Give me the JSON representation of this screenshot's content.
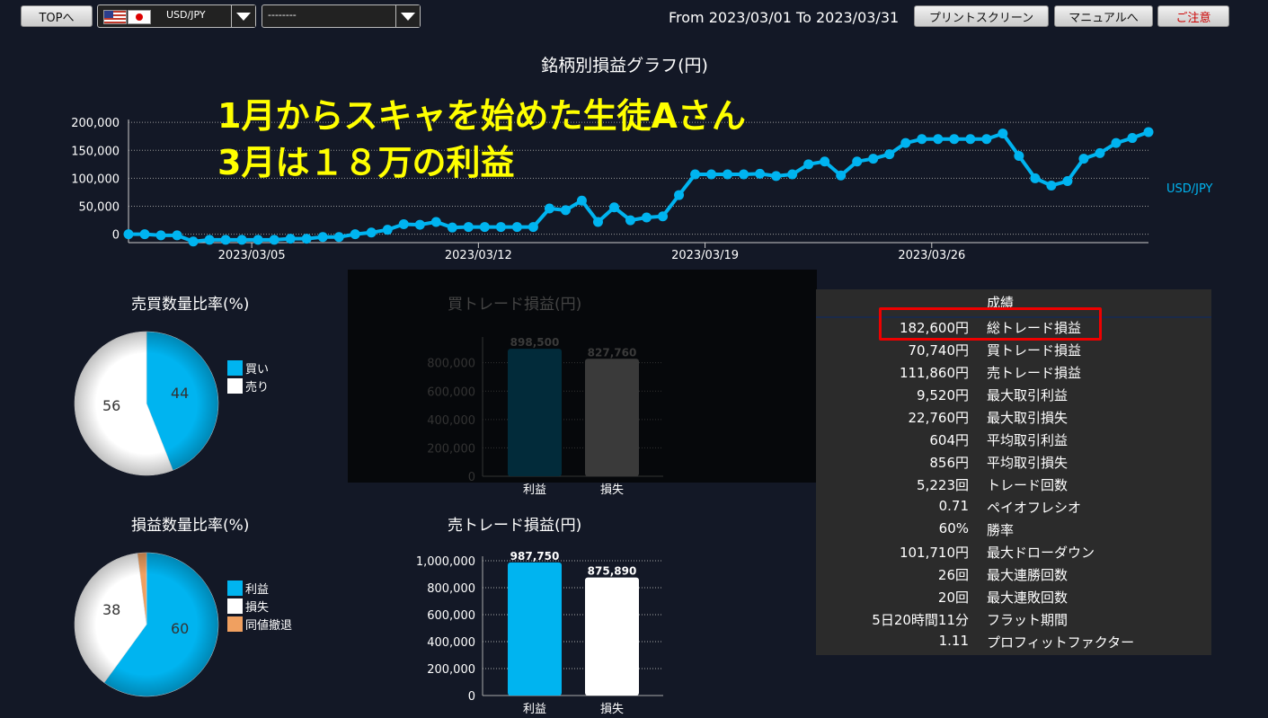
{
  "toolbar": {
    "top_button": "TOPへ",
    "pair_select": "USD/JPY",
    "second_select": "--------",
    "date_range": "From 2023/03/01 To 2023/03/31",
    "print_button": "プリントスクリーン",
    "manual_button": "マニュアルへ",
    "logout_button": "ご注意"
  },
  "main_chart": {
    "title": "銘柄別損益グラフ(円)",
    "legend": "USD/JPY",
    "y_ticks": [
      "200,000",
      "150,000",
      "100,000",
      "50,000",
      "0"
    ],
    "x_ticks": [
      "2023/03/05",
      "2023/03/12",
      "2023/03/19",
      "2023/03/26"
    ],
    "overlay_line1": "1月からスキャを始めた生徒Aさん",
    "overlay_line2": "3月は１８万の利益"
  },
  "chart_data": [
    {
      "type": "line",
      "title": "銘柄別損益グラフ(円)",
      "series": [
        {
          "name": "USD/JPY",
          "values": [
            0,
            0,
            -2000,
            -2000,
            -13000,
            -10000,
            -10000,
            -10000,
            -10000,
            -10000,
            -8000,
            -8000,
            -5000,
            -5000,
            0,
            3000,
            8000,
            18000,
            17000,
            22000,
            12000,
            13000,
            13000,
            13000,
            13000,
            13000,
            46000,
            43000,
            60000,
            22000,
            48000,
            25000,
            30000,
            32000,
            70000,
            107000,
            107000,
            107000,
            107000,
            108000,
            104000,
            107000,
            125000,
            130000,
            105000,
            130000,
            135000,
            143000,
            163000,
            170000,
            170000,
            170000,
            170000,
            170000,
            180000,
            140000,
            100000,
            87000,
            95000,
            135000,
            145000,
            163000,
            172000,
            182600
          ]
        }
      ],
      "ylim": [
        -15000,
        205000
      ]
    },
    {
      "type": "pie",
      "title": "売買数量比率(%)",
      "labels": [
        "買い",
        "売り"
      ],
      "values": [
        44,
        56
      ],
      "colors": [
        "#00b4f0",
        "#ffffff"
      ]
    },
    {
      "type": "pie",
      "title": "損益数量比率(%)",
      "labels": [
        "利益",
        "損失",
        "同値撤退"
      ],
      "values": [
        60,
        38,
        2
      ],
      "colors": [
        "#00b4f0",
        "#ffffff",
        "#f0a060"
      ]
    },
    {
      "type": "bar",
      "title": "買トレード損益(円)",
      "categories": [
        "利益",
        "損失"
      ],
      "values": [
        898500,
        827760
      ],
      "value_labels": [
        "898,500",
        "827,760"
      ],
      "y_ticks": [
        "800,000",
        "600,000",
        "400,000",
        "200,000",
        "0"
      ],
      "ylim": [
        0,
        950000
      ]
    },
    {
      "type": "bar",
      "title": "売トレード損益(円)",
      "categories": [
        "利益",
        "損失"
      ],
      "values": [
        987750,
        875890
      ],
      "value_labels": [
        "987,750",
        "875,890"
      ],
      "y_ticks": [
        "1,000,000",
        "800,000",
        "600,000",
        "400,000",
        "200,000",
        "0"
      ],
      "ylim": [
        0,
        1000000
      ]
    }
  ],
  "pie1_labels": {
    "a": "44",
    "b": "56"
  },
  "pie2_labels": {
    "a": "60",
    "b": "38"
  },
  "results": {
    "header": "成績",
    "rows": [
      {
        "value": "182,600円",
        "label": "総トレード損益"
      },
      {
        "value": "70,740円",
        "label": "買トレード損益"
      },
      {
        "value": "111,860円",
        "label": "売トレード損益"
      },
      {
        "value": "9,520円",
        "label": "最大取引利益"
      },
      {
        "value": "22,760円",
        "label": "最大取引損失"
      },
      {
        "value": "604円",
        "label": "平均取引利益"
      },
      {
        "value": "856円",
        "label": "平均取引損失"
      },
      {
        "value": "5,223回",
        "label": "トレード回数"
      },
      {
        "value": "0.71",
        "label": "ペイオフレシオ"
      },
      {
        "value": "60%",
        "label": "勝率"
      },
      {
        "value": "101,710円",
        "label": "最大ドローダウン"
      },
      {
        "value": "26回",
        "label": "最大連勝回数"
      },
      {
        "value": "20回",
        "label": "最大連敗回数"
      },
      {
        "value": "5日20時間11分",
        "label": "フラット期間"
      },
      {
        "value": "1.11",
        "label": "プロフィットファクター"
      }
    ]
  },
  "colors": {
    "accent": "#00b4f0",
    "highlight": "#ff0000",
    "overlay": "#ffff00",
    "logout": "#cc0000"
  }
}
